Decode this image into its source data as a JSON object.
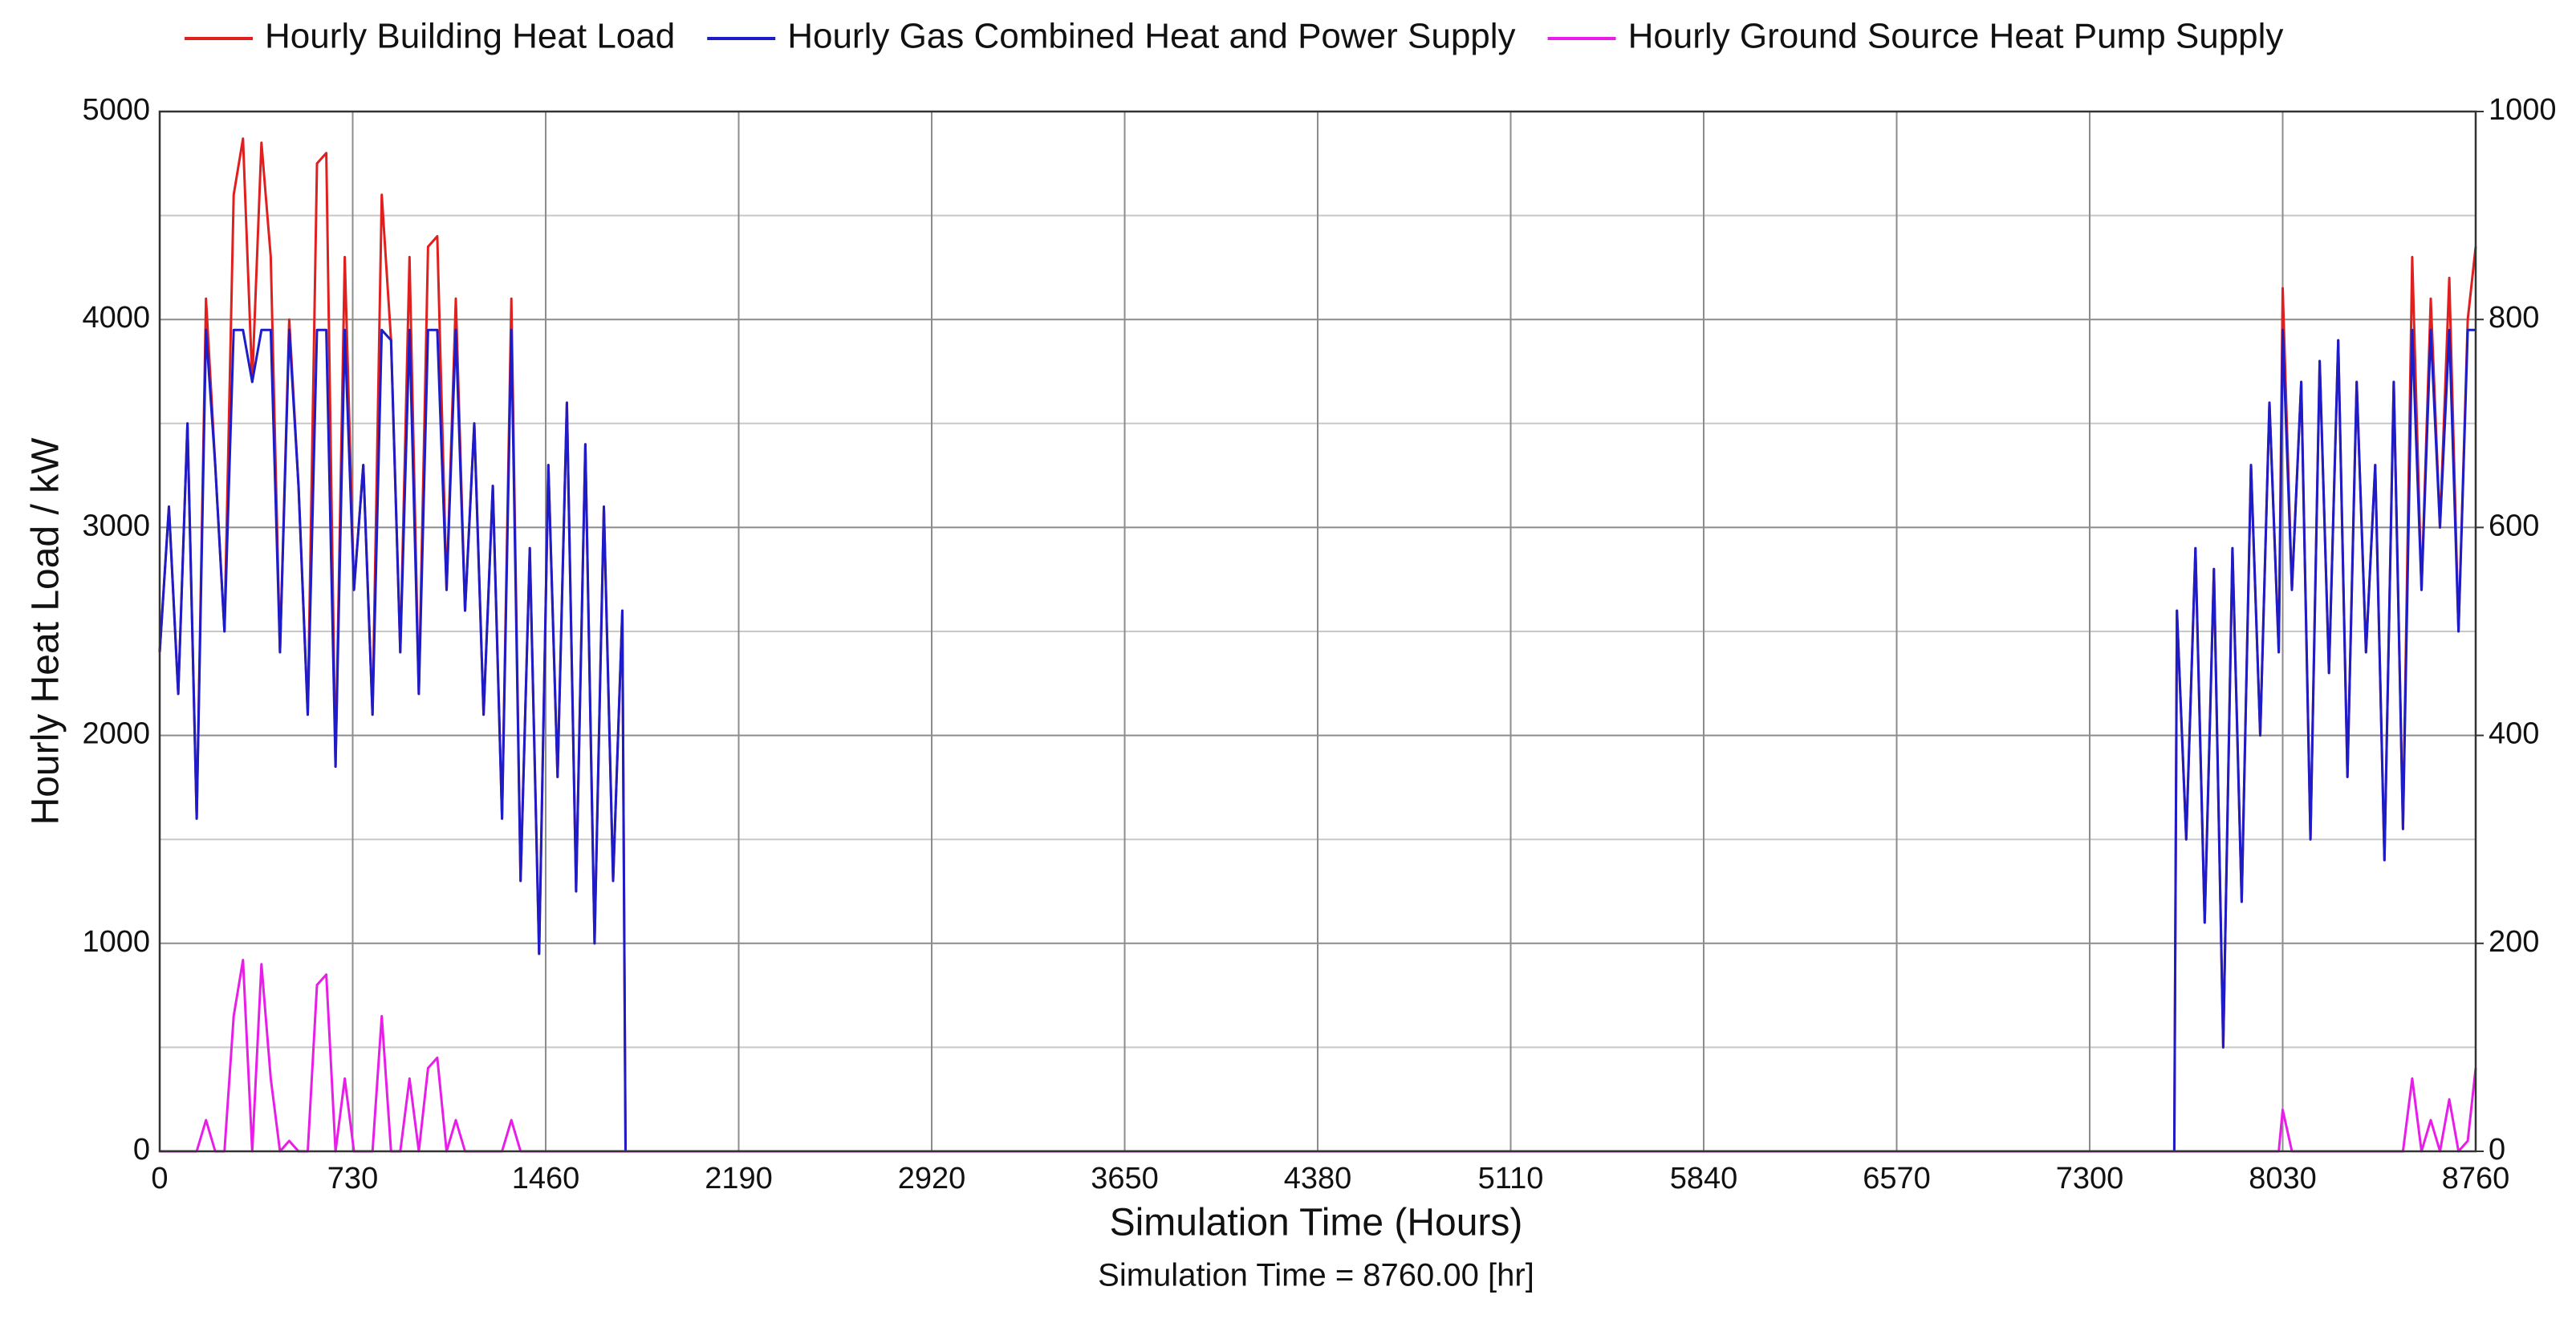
{
  "chart_data": {
    "type": "line",
    "xlabel": "Simulation Time (Hours)",
    "ylabel": "Hourly Heat Load / kW",
    "annotation": "Simulation Time = 8760.00 [hr]",
    "legend": "top",
    "grid": true,
    "xlim": [
      0,
      8760
    ],
    "xticks": [
      0,
      730,
      1460,
      2190,
      2920,
      3650,
      4380,
      5110,
      5840,
      6570,
      7300,
      8030,
      8760
    ],
    "ylim": [
      0,
      5000
    ],
    "yticks": [
      0,
      1000,
      2000,
      3000,
      4000,
      5000
    ],
    "yminor": [
      500,
      1500,
      2500,
      3500,
      4500
    ],
    "y2lim": [
      0,
      1000
    ],
    "y2ticks": [
      0,
      200,
      400,
      600,
      800,
      1000
    ],
    "x": [
      0,
      35,
      70,
      105,
      140,
      175,
      210,
      245,
      280,
      315,
      350,
      385,
      420,
      455,
      490,
      525,
      560,
      595,
      630,
      665,
      700,
      735,
      770,
      805,
      840,
      875,
      910,
      945,
      980,
      1015,
      1050,
      1085,
      1120,
      1155,
      1190,
      1225,
      1260,
      1295,
      1330,
      1365,
      1400,
      1435,
      1470,
      1505,
      1540,
      1575,
      1610,
      1645,
      1680,
      1715,
      1750,
      1762,
      7620,
      7630,
      7665,
      7700,
      7735,
      7770,
      7805,
      7840,
      7875,
      7910,
      7945,
      7980,
      8015,
      8030,
      8065,
      8100,
      8135,
      8170,
      8205,
      8240,
      8275,
      8310,
      8345,
      8380,
      8415,
      8450,
      8485,
      8520,
      8555,
      8590,
      8625,
      8660,
      8695,
      8730,
      8760
    ],
    "series": [
      {
        "name": "Hourly Building Heat Load",
        "color": "#e01f1f",
        "values": [
          2400,
          3100,
          2200,
          3500,
          1600,
          4100,
          3300,
          2500,
          4600,
          4870,
          3700,
          4850,
          4300,
          2400,
          4000,
          3200,
          2100,
          4750,
          4800,
          1850,
          4300,
          2700,
          3300,
          2100,
          4600,
          3900,
          2400,
          4300,
          2200,
          4350,
          4400,
          2700,
          4100,
          2600,
          3500,
          2100,
          3200,
          1600,
          4100,
          1300,
          2900,
          950,
          3300,
          1800,
          3600,
          1250,
          3400,
          1000,
          3100,
          1300,
          2600,
          0,
          0,
          2600,
          1500,
          2900,
          1100,
          2800,
          500,
          2900,
          1200,
          3300,
          2000,
          3600,
          2400,
          4150,
          2700,
          3700,
          1500,
          3800,
          2300,
          3900,
          1800,
          3700,
          2400,
          3300,
          1400,
          3700,
          1550,
          4300,
          2700,
          4100,
          3000,
          4200,
          2500,
          4000,
          4350
        ]
      },
      {
        "name": "Hourly Gas Combined Heat and Power Supply",
        "color": "#1c1cc8",
        "values": [
          2400,
          3100,
          2200,
          3500,
          1600,
          3950,
          3300,
          2500,
          3950,
          3950,
          3700,
          3950,
          3950,
          2400,
          3950,
          3200,
          2100,
          3950,
          3950,
          1850,
          3950,
          2700,
          3300,
          2100,
          3950,
          3900,
          2400,
          3950,
          2200,
          3950,
          3950,
          2700,
          3950,
          2600,
          3500,
          2100,
          3200,
          1600,
          3950,
          1300,
          2900,
          950,
          3300,
          1800,
          3600,
          1250,
          3400,
          1000,
          3100,
          1300,
          2600,
          0,
          0,
          2600,
          1500,
          2900,
          1100,
          2800,
          500,
          2900,
          1200,
          3300,
          2000,
          3600,
          2400,
          3950,
          2700,
          3700,
          1500,
          3800,
          2300,
          3900,
          1800,
          3700,
          2400,
          3300,
          1400,
          3700,
          1550,
          3950,
          2700,
          3950,
          3000,
          3950,
          2500,
          3950,
          3950
        ]
      },
      {
        "name": "Hourly Ground Source Heat Pump Supply",
        "color": "#e81ee8",
        "values": [
          0,
          0,
          0,
          0,
          0,
          150,
          0,
          0,
          650,
          920,
          0,
          900,
          350,
          0,
          50,
          0,
          0,
          800,
          850,
          0,
          350,
          0,
          0,
          0,
          650,
          0,
          0,
          350,
          0,
          400,
          450,
          0,
          150,
          0,
          0,
          0,
          0,
          0,
          150,
          0,
          0,
          0,
          0,
          0,
          0,
          0,
          0,
          0,
          0,
          0,
          0,
          0,
          0,
          0,
          0,
          0,
          0,
          0,
          0,
          0,
          0,
          0,
          0,
          0,
          0,
          200,
          0,
          0,
          0,
          0,
          0,
          0,
          0,
          0,
          0,
          0,
          0,
          0,
          0,
          350,
          0,
          150,
          0,
          250,
          0,
          50,
          400
        ]
      }
    ]
  }
}
